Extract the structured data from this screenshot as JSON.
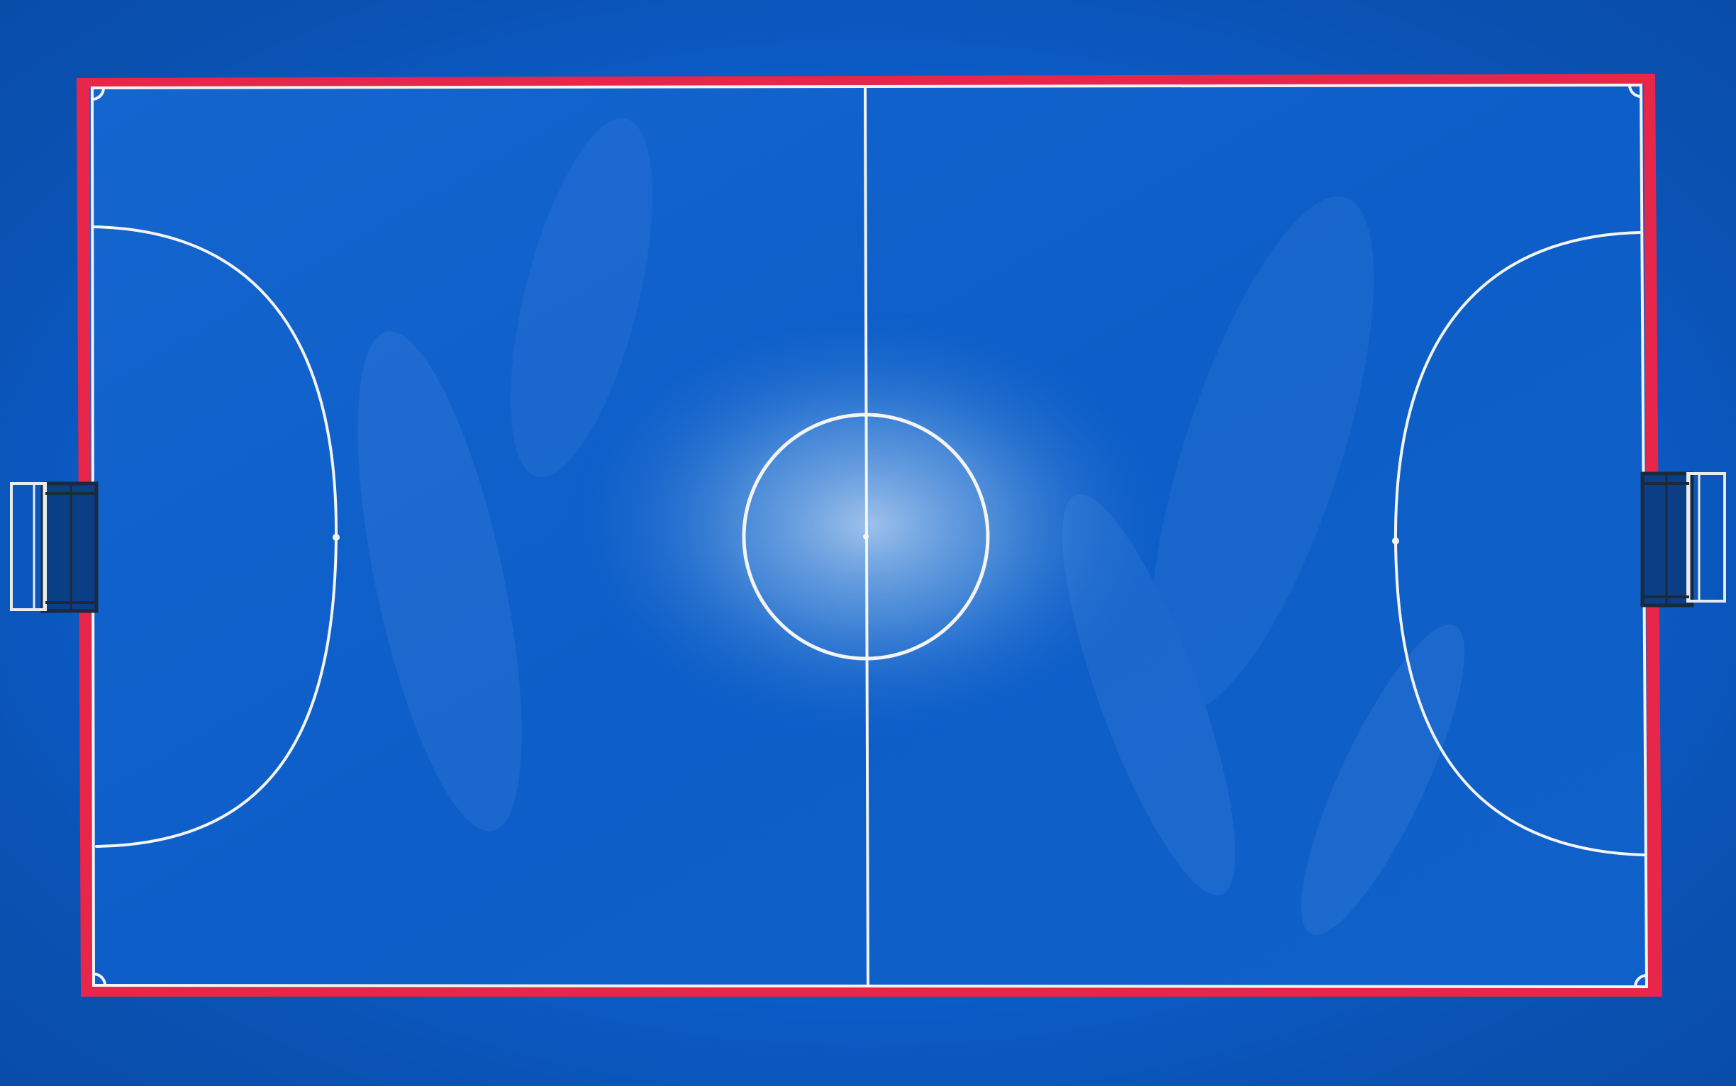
{
  "scene": {
    "subject": "futsal-court-aerial-view",
    "colors": {
      "surround": "#0b5cc8",
      "court_surface": "#0d5fc9",
      "court_surface_light": "#3f8be0",
      "haze": "#bcd8f4",
      "border_band": "#e8264a",
      "court_lines": "#f4f4f2",
      "goal_frame": "#e9ecef",
      "goal_net": "#1a2a3a"
    },
    "icons": {
      "left_goal": "goal-icon",
      "right_goal": "goal-icon",
      "center_mark": "center-spot-icon"
    }
  }
}
